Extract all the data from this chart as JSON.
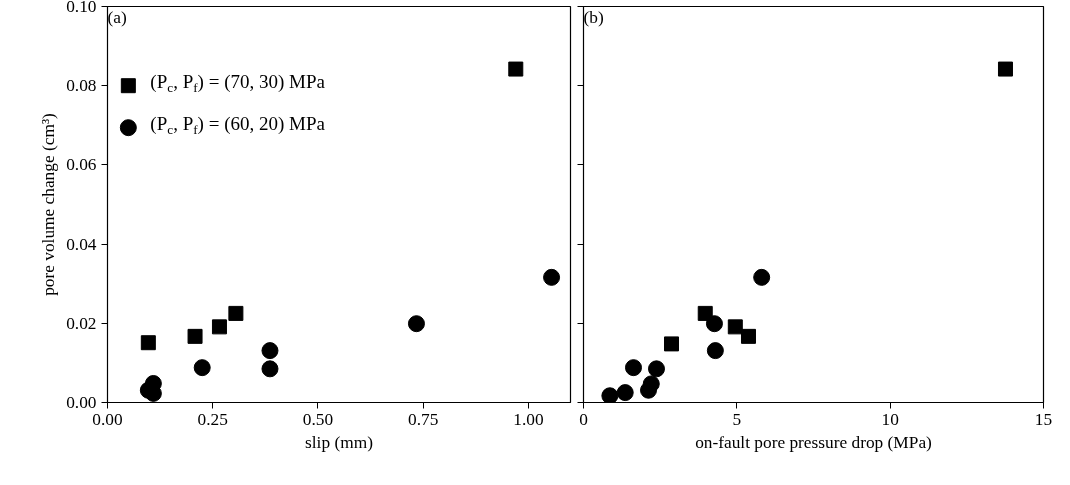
{
  "chart_data": [
    {
      "type": "scatter",
      "xlabel": "slip (mm)",
      "ylabel": "pore volume change (cm³)",
      "annotations": [
        "(a)"
      ],
      "legend": "top left",
      "grid": false,
      "xlim": [
        0,
        1.1
      ],
      "xticks": [
        {
          "value": 0,
          "label": "0.00"
        },
        {
          "value": 0.25,
          "label": "0.25"
        },
        {
          "value": 0.5,
          "label": "0.50"
        },
        {
          "value": 0.75,
          "label": "0.75"
        },
        {
          "value": 1.0,
          "label": "1.00"
        }
      ],
      "ylim": [
        0,
        0.1
      ],
      "yticks": [
        {
          "value": 0,
          "label": "0.00"
        },
        {
          "value": 0.02,
          "label": "0.02"
        },
        {
          "value": 0.04,
          "label": "0.04"
        },
        {
          "value": 0.06,
          "label": "0.06"
        },
        {
          "value": 0.08,
          "label": "0.08"
        },
        {
          "value": 0.1,
          "label": "0.10"
        }
      ],
      "series": [
        {
          "name": "(P$_{c}$, P$_{f}$) = (70, 30) MPa",
          "color": "#000000",
          "marker": "square",
          "x": [
            0.097,
            0.208,
            0.266,
            0.305,
            0.97
          ],
          "values": [
            0.0151,
            0.0167,
            0.0191,
            0.0225,
            0.0842
          ]
        },
        {
          "name": "(P$_{c}$, P$_{f}$) = (60, 20) MPa",
          "color": "#000000",
          "marker": "circle",
          "x": [
            0.097,
            0.109,
            0.109,
            0.225,
            0.386,
            0.386,
            0.734,
            1.055
          ],
          "values": [
            0.0031,
            0.0048,
            0.0023,
            0.0088,
            0.0131,
            0.0085,
            0.0199,
            0.0316
          ]
        }
      ]
    },
    {
      "type": "scatter",
      "xlabel": "on-fault pore pressure drop (MPa)",
      "annotations": [
        "(b)"
      ],
      "grid": false,
      "tick_labels": "x",
      "xlim": [
        0,
        15
      ],
      "xticks": [
        0,
        5,
        10,
        15
      ],
      "ylim": [
        0,
        0.1
      ],
      "yticks": [
        {
          "value": 0,
          "label": null
        },
        {
          "value": 0.02,
          "label": null
        },
        {
          "value": 0.04,
          "label": null
        },
        {
          "value": 0.06,
          "label": null
        },
        {
          "value": 0.08,
          "label": null
        },
        {
          "value": 0.1,
          "label": null
        }
      ],
      "series": [
        {
          "color": "#000000",
          "marker": "square",
          "x": [
            2.87,
            3.97,
            4.95,
            5.38,
            13.76
          ],
          "values": [
            0.0148,
            0.0225,
            0.0191,
            0.0167,
            0.0842
          ]
        },
        {
          "color": "#000000",
          "marker": "circle",
          "x": [
            0.86,
            1.36,
            2.12,
            2.21,
            1.63,
            2.38,
            4.3,
            4.27,
            5.81
          ],
          "values": [
            0.0017,
            0.0025,
            0.0031,
            0.0047,
            0.0088,
            0.0085,
            0.0131,
            0.0199,
            0.0316
          ]
        }
      ]
    }
  ]
}
